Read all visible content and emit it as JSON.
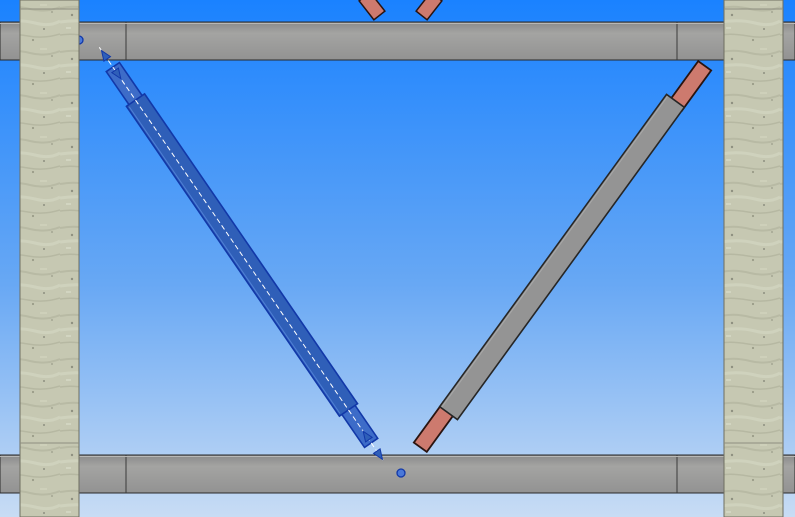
{
  "viewport": {
    "mode": "3d-structural-model-view",
    "background_gradient": {
      "top": "#1a82ff",
      "bottom": "#c8dcf4"
    }
  },
  "colors": {
    "beam_fill": "#989898",
    "beam_edge": "#2a2a2a",
    "column_fill": "#c8c8b4",
    "column_edge": "#6e6e60",
    "brace_fill": "#949494",
    "brace_edge": "#262626",
    "gusset_fill": "#cd7a6e",
    "gusset_edge": "#2a1410",
    "selection_fill": "#2f5fb8",
    "selection_edge": "#1238a8",
    "selection_handle": "#4a78d8",
    "selection_axis": "#ffffff"
  },
  "elements": {
    "columns": [
      {
        "id": "column-left",
        "selected": false
      },
      {
        "id": "column-right",
        "selected": false
      }
    ],
    "beams": [
      {
        "id": "beam-top",
        "selected": false
      },
      {
        "id": "beam-bottom",
        "selected": false
      }
    ],
    "braces": [
      {
        "id": "brace-left",
        "selected": true,
        "icon": "selection-handle-icon"
      },
      {
        "id": "brace-right",
        "selected": false
      }
    ],
    "gussets": [
      {
        "id": "gusset-top-left",
        "selected": false
      },
      {
        "id": "gusset-top-right",
        "selected": false
      },
      {
        "id": "gusset-brace-right-top",
        "selected": false
      },
      {
        "id": "gusset-brace-right-bottom",
        "selected": false
      }
    ]
  }
}
